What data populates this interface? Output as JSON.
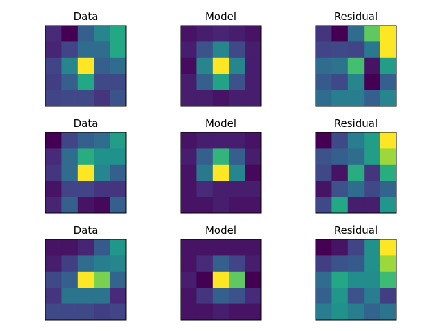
{
  "chart_data": [
    {
      "type": "heatmap",
      "title": "Data",
      "colormap": "viridis",
      "values": [
        [
          0.12,
          0.0,
          0.3,
          0.45,
          0.6
        ],
        [
          0.1,
          0.2,
          0.35,
          0.35,
          0.6
        ],
        [
          0.2,
          0.45,
          1.0,
          0.3,
          0.35
        ],
        [
          0.18,
          0.3,
          0.6,
          0.22,
          0.22
        ],
        [
          0.2,
          0.22,
          0.22,
          0.15,
          0.25
        ]
      ]
    },
    {
      "type": "heatmap",
      "title": "Model",
      "colormap": "viridis",
      "values": [
        [
          0.05,
          0.08,
          0.1,
          0.08,
          0.05
        ],
        [
          0.08,
          0.25,
          0.45,
          0.22,
          0.08
        ],
        [
          0.03,
          0.45,
          1.0,
          0.45,
          0.08
        ],
        [
          0.08,
          0.3,
          0.58,
          0.25,
          0.08
        ],
        [
          0.08,
          0.08,
          0.05,
          0.08,
          0.08
        ]
      ]
    },
    {
      "type": "heatmap",
      "title": "Residual",
      "colormap": "viridis",
      "values": [
        [
          0.15,
          0.0,
          0.35,
          0.75,
          1.0
        ],
        [
          0.2,
          0.22,
          0.2,
          0.4,
          1.0
        ],
        [
          0.35,
          0.38,
          0.7,
          0.05,
          0.55
        ],
        [
          0.28,
          0.22,
          0.45,
          0.0,
          0.3
        ],
        [
          0.35,
          0.42,
          0.42,
          0.3,
          0.45
        ]
      ]
    },
    {
      "type": "heatmap",
      "title": "Data",
      "colormap": "viridis",
      "values": [
        [
          0.0,
          0.2,
          0.3,
          0.35,
          0.55
        ],
        [
          0.12,
          0.35,
          0.62,
          0.5,
          0.5
        ],
        [
          0.15,
          0.35,
          1.0,
          0.45,
          0.3
        ],
        [
          0.05,
          0.2,
          0.2,
          0.15,
          0.15
        ],
        [
          0.1,
          0.3,
          0.05,
          0.02,
          0.3
        ]
      ]
    },
    {
      "type": "heatmap",
      "title": "Model",
      "colormap": "viridis",
      "values": [
        [
          0.05,
          0.08,
          0.08,
          0.08,
          0.05
        ],
        [
          0.08,
          0.3,
          0.65,
          0.3,
          0.08
        ],
        [
          0.05,
          0.4,
          1.0,
          0.45,
          0.02
        ],
        [
          0.05,
          0.12,
          0.08,
          0.08,
          0.08
        ],
        [
          0.05,
          0.05,
          0.08,
          0.05,
          0.05
        ]
      ]
    },
    {
      "type": "heatmap",
      "title": "Residual",
      "colormap": "viridis",
      "values": [
        [
          0.0,
          0.22,
          0.42,
          0.55,
          1.0
        ],
        [
          0.25,
          0.3,
          0.35,
          0.55,
          0.85
        ],
        [
          0.22,
          0.05,
          0.62,
          0.15,
          0.62
        ],
        [
          0.05,
          0.25,
          0.35,
          0.22,
          0.32
        ],
        [
          0.22,
          0.6,
          0.08,
          0.08,
          0.52
        ]
      ]
    },
    {
      "type": "heatmap",
      "title": "Data",
      "colormap": "viridis",
      "values": [
        [
          0.05,
          0.05,
          0.1,
          0.28,
          0.52
        ],
        [
          0.08,
          0.18,
          0.35,
          0.42,
          0.45
        ],
        [
          0.22,
          0.3,
          1.0,
          0.8,
          0.32
        ],
        [
          0.15,
          0.38,
          0.38,
          0.38,
          0.12
        ],
        [
          0.22,
          0.22,
          0.22,
          0.18,
          0.2
        ]
      ]
    },
    {
      "type": "heatmap",
      "title": "Model",
      "colormap": "viridis",
      "values": [
        [
          0.05,
          0.05,
          0.05,
          0.05,
          0.05
        ],
        [
          0.05,
          0.12,
          0.3,
          0.2,
          0.08
        ],
        [
          0.08,
          0.0,
          1.0,
          0.75,
          0.0
        ],
        [
          0.05,
          0.15,
          0.3,
          0.25,
          0.12
        ],
        [
          0.05,
          0.05,
          0.08,
          0.05,
          0.05
        ]
      ]
    },
    {
      "type": "heatmap",
      "title": "Residual",
      "colormap": "viridis",
      "values": [
        [
          0.0,
          0.05,
          0.2,
          0.5,
          1.0
        ],
        [
          0.18,
          0.25,
          0.28,
          0.5,
          0.85
        ],
        [
          0.35,
          0.6,
          0.48,
          0.48,
          0.68
        ],
        [
          0.3,
          0.52,
          0.25,
          0.42,
          0.18
        ],
        [
          0.42,
          0.5,
          0.42,
          0.32,
          0.38
        ]
      ]
    }
  ]
}
